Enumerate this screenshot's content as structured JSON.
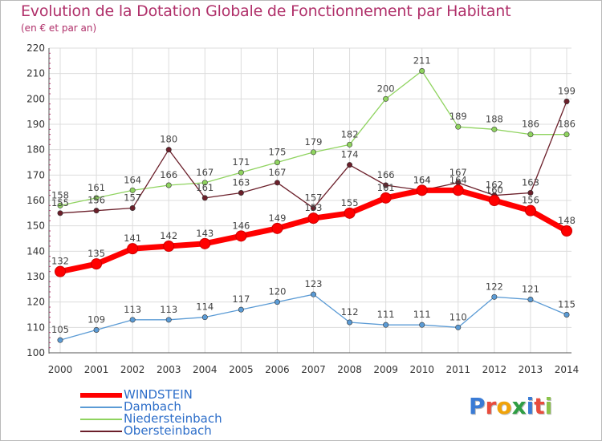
{
  "header": {
    "title": "Evolution de la Dotation Globale de Fonctionnement par Habitant",
    "subtitle": "(en € et par an)"
  },
  "logo": {
    "text": "Proxiti",
    "colors": [
      "#3a7bd5",
      "#e84c3d",
      "#f0a30a",
      "#2f9e44",
      "#3a7bd5",
      "#e84c3d",
      "#8bc34a"
    ]
  },
  "chart_data": {
    "type": "line",
    "x": [
      "2000",
      "2001",
      "2002",
      "2003",
      "2004",
      "2005",
      "2006",
      "2007",
      "2008",
      "2009",
      "2010",
      "2011",
      "2012",
      "2013",
      "2014"
    ],
    "ylim": [
      100,
      220
    ],
    "yticks": [
      "100",
      "110",
      "120",
      "130",
      "140",
      "150",
      "160",
      "170",
      "180",
      "190",
      "200",
      "210",
      "220"
    ],
    "grid": true,
    "legend_position": "bottom-left",
    "series": [
      {
        "name": "WINDSTEIN",
        "color": "#ff0000",
        "emphasis": true,
        "values": [
          132,
          135,
          141,
          142,
          143,
          146,
          149,
          153,
          155,
          161,
          164,
          164,
          160,
          156,
          148
        ],
        "labels": [
          "132",
          "135",
          "141",
          "142",
          "143",
          "146",
          "149",
          "153",
          "155",
          "161",
          "164",
          "164",
          "160",
          "156",
          "148"
        ]
      },
      {
        "name": "Dambach",
        "color": "#5b9bd5",
        "emphasis": false,
        "values": [
          105,
          109,
          113,
          113,
          114,
          117,
          120,
          123,
          112,
          111,
          111,
          110,
          122,
          121,
          115
        ],
        "labels": [
          "105",
          "109",
          "113",
          "113",
          "114",
          "117",
          "120",
          "123",
          "112",
          "111",
          "111",
          "110",
          "122",
          "121",
          "115"
        ]
      },
      {
        "name": "Niedersteinbach",
        "color": "#8fd35f",
        "emphasis": false,
        "values": [
          158,
          161,
          164,
          166,
          167,
          171,
          175,
          179,
          182,
          200,
          211,
          189,
          188,
          186,
          186
        ],
        "labels": [
          "158",
          "161",
          "164",
          "166",
          "167",
          "171",
          "175",
          "179",
          "182",
          "200",
          "211",
          "189",
          "188",
          "186",
          "186"
        ]
      },
      {
        "name": "Obersteinbach",
        "color": "#6b1f2a",
        "emphasis": false,
        "values": [
          155,
          156,
          157,
          180,
          161,
          163,
          167,
          157,
          174,
          166,
          164,
          167,
          162,
          163,
          199
        ],
        "labels": [
          "155",
          "156",
          "157",
          "180",
          "161",
          "163",
          "167",
          "157",
          "174",
          "166",
          "164",
          "167",
          "162",
          "163",
          "199"
        ]
      }
    ]
  }
}
